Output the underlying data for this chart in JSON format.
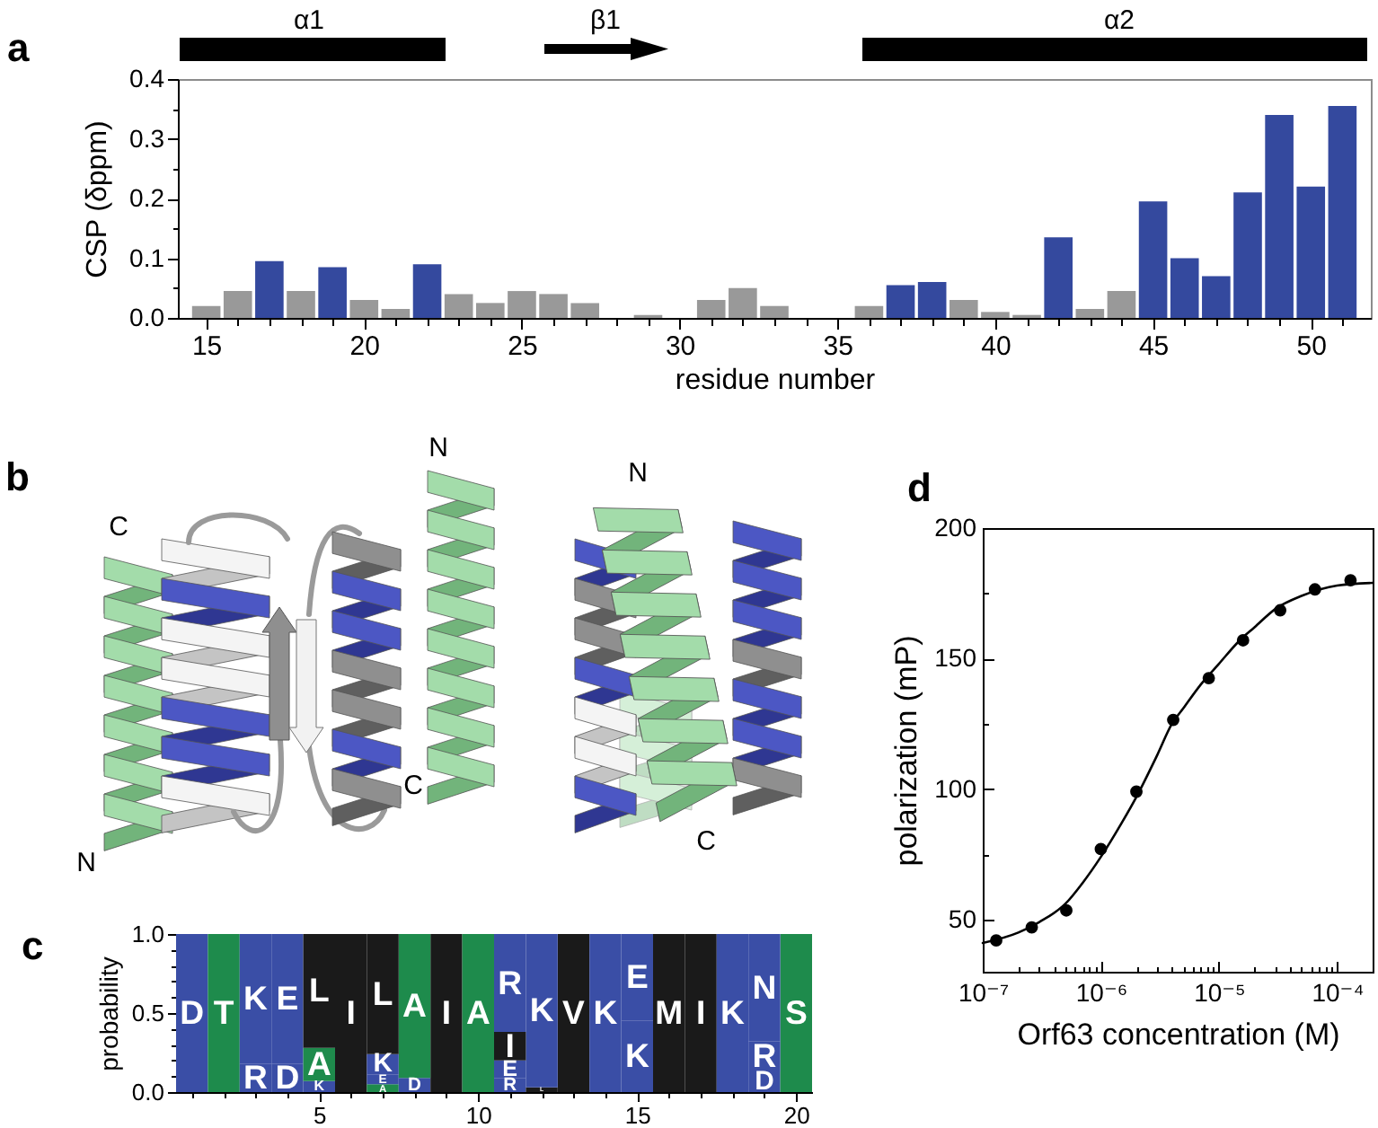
{
  "chart_data": [
    {
      "type": "bar",
      "title": "a",
      "xlabel": "residue number",
      "ylabel": "CSP (δppm)",
      "annotations": [
        "α1",
        "β1",
        "α2"
      ],
      "x": [
        15,
        16,
        17,
        18,
        19,
        20,
        21,
        22,
        23,
        24,
        25,
        26,
        27,
        29,
        31,
        32,
        33,
        36,
        37,
        38,
        39,
        40,
        41,
        42,
        43,
        44,
        45,
        46,
        47,
        48,
        49,
        50,
        51
      ],
      "values": [
        0.02,
        0.045,
        0.095,
        0.045,
        0.085,
        0.03,
        0.015,
        0.09,
        0.04,
        0.025,
        0.045,
        0.04,
        0.025,
        0.005,
        0.03,
        0.05,
        0.02,
        0.02,
        0.055,
        0.06,
        0.03,
        0.01,
        0.005,
        0.135,
        0.015,
        0.045,
        0.195,
        0.1,
        0.07,
        0.21,
        0.34,
        0.22,
        0.355
      ],
      "colors": [
        "#999999",
        "#999999",
        "#34499e",
        "#999999",
        "#34499e",
        "#999999",
        "#999999",
        "#34499e",
        "#999999",
        "#999999",
        "#999999",
        "#999999",
        "#999999",
        "#999999",
        "#999999",
        "#999999",
        "#999999",
        "#999999",
        "#34499e",
        "#34499e",
        "#999999",
        "#999999",
        "#999999",
        "#34499e",
        "#999999",
        "#999999",
        "#34499e",
        "#34499e",
        "#34499e",
        "#34499e",
        "#34499e",
        "#34499e",
        "#34499e"
      ],
      "xlim": [
        14.1,
        51.9
      ],
      "ylim": [
        0,
        0.4
      ],
      "xticks": [
        15,
        {
          "value": 16,
          "label": null
        },
        {
          "value": 17,
          "label": null
        },
        {
          "value": 18,
          "label": null
        },
        {
          "value": 19,
          "label": null
        },
        20,
        {
          "value": 21,
          "label": null
        },
        {
          "value": 22,
          "label": null
        },
        {
          "value": 23,
          "label": null
        },
        {
          "value": 24,
          "label": null
        },
        25,
        {
          "value": 26,
          "label": null
        },
        {
          "value": 27,
          "label": null
        },
        {
          "value": 28,
          "label": null
        },
        {
          "value": 29,
          "label": null
        },
        30,
        {
          "value": 31,
          "label": null
        },
        {
          "value": 32,
          "label": null
        },
        {
          "value": 33,
          "label": null
        },
        {
          "value": 34,
          "label": null
        },
        35,
        {
          "value": 36,
          "label": null
        },
        {
          "value": 37,
          "label": null
        },
        {
          "value": 38,
          "label": null
        },
        {
          "value": 39,
          "label": null
        },
        40,
        {
          "value": 41,
          "label": null
        },
        {
          "value": 42,
          "label": null
        },
        {
          "value": 43,
          "label": null
        },
        {
          "value": 44,
          "label": null
        },
        45,
        {
          "value": 46,
          "label": null
        },
        {
          "value": 47,
          "label": null
        },
        {
          "value": 48,
          "label": null
        },
        {
          "value": 49,
          "label": null
        },
        50,
        {
          "value": 51,
          "label": null
        }
      ],
      "yticks": [
        {
          "value": 0,
          "label": "0.0"
        },
        {
          "value": 0.05,
          "label": null
        },
        0.1,
        {
          "value": 0.15,
          "label": null
        },
        0.2,
        {
          "value": 0.25,
          "label": null
        },
        0.3,
        {
          "value": 0.35,
          "label": null
        },
        0.4
      ]
    },
    {
      "type": "other",
      "title": "b",
      "annotations": [
        "C",
        "N",
        "N",
        "C",
        "N",
        "C"
      ]
    },
    {
      "type": "bar",
      "stacked": true,
      "title": "c",
      "ylabel": "probability",
      "x": [
        1,
        2,
        3,
        4,
        5,
        6,
        7,
        8,
        9,
        10,
        11,
        12,
        13,
        14,
        15,
        16,
        17,
        18,
        19,
        20
      ],
      "series": [
        {
          "values": [
            1,
            1,
            0.18,
            0.18,
            0.07,
            1,
            0.05,
            0.09,
            1,
            1,
            0.09,
            0.03,
            1,
            1,
            0.45,
            1,
            1,
            1,
            0.13,
            1
          ],
          "colors": [
            "#3a4ea6",
            "#1e8b4c",
            "#3a4ea6",
            "#3a4ea6",
            "#3a4ea6",
            "#1a1a1a",
            "#1e8b4c",
            "#3a4ea6",
            "#1a1a1a",
            "#1e8b4c",
            "#3a4ea6",
            "#1a1a1a",
            "#1a1a1a",
            "#3a4ea6",
            "#3a4ea6",
            "#1a1a1a",
            "#1a1a1a",
            "#3a4ea6",
            "#3a4ea6",
            "#1e8b4c"
          ],
          "value_labels": [
            "D",
            "T",
            "R",
            "D",
            "K",
            "I",
            "A",
            "D",
            "I",
            "A",
            "R",
            "L",
            "V",
            "K",
            "K",
            "M",
            "I",
            "K",
            "D",
            "S"
          ]
        },
        {
          "values": [
            null,
            null,
            0.82,
            0.82,
            0.21,
            null,
            0.06,
            0.91,
            null,
            null,
            0.11,
            0.97,
            null,
            null,
            0.55,
            null,
            null,
            null,
            0.19,
            null
          ],
          "colors": [
            null,
            null,
            "#3a4ea6",
            "#3a4ea6",
            "#1e8b4c",
            null,
            "#3a4ea6",
            "#1e8b4c",
            null,
            null,
            "#3a4ea6",
            "#3a4ea6",
            null,
            null,
            "#3a4ea6",
            null,
            null,
            null,
            "#3a4ea6",
            null
          ],
          "value_labels": [
            null,
            null,
            "K",
            "E",
            "A",
            null,
            "E",
            "A",
            null,
            null,
            "E",
            "K",
            null,
            null,
            "E",
            null,
            null,
            null,
            "R",
            null
          ]
        },
        {
          "values": [
            null,
            null,
            null,
            null,
            0.72,
            null,
            0.13,
            null,
            null,
            null,
            0.18,
            null,
            null,
            null,
            null,
            null,
            null,
            null,
            0.68,
            null
          ],
          "colors": [
            null,
            null,
            null,
            null,
            "#1a1a1a",
            null,
            "#3a4ea6",
            null,
            null,
            null,
            "#1a1a1a",
            null,
            null,
            null,
            null,
            null,
            null,
            null,
            "#3a4ea6",
            null
          ],
          "value_labels": [
            null,
            null,
            null,
            null,
            "L",
            null,
            "K",
            null,
            null,
            null,
            "I",
            null,
            null,
            null,
            null,
            null,
            null,
            null,
            "N",
            null
          ]
        },
        {
          "values": [
            null,
            null,
            null,
            null,
            null,
            null,
            0.76,
            null,
            null,
            null,
            0.62,
            null,
            null,
            null,
            null,
            null,
            null,
            null,
            null,
            null
          ],
          "colors": [
            null,
            null,
            null,
            null,
            null,
            null,
            "#1a1a1a",
            null,
            null,
            null,
            "#3a4ea6",
            null,
            null,
            null,
            null,
            null,
            null,
            null,
            null,
            null
          ],
          "value_labels": [
            null,
            null,
            null,
            null,
            null,
            null,
            "L",
            null,
            null,
            null,
            "R",
            null,
            null,
            null,
            null,
            null,
            null,
            null,
            null,
            null
          ]
        }
      ],
      "xlim": [
        0.5,
        20.5
      ],
      "ylim": [
        0,
        1
      ],
      "xticks": [
        {
          "value": 1,
          "label": null
        },
        {
          "value": 2,
          "label": null
        },
        {
          "value": 3,
          "label": null
        },
        {
          "value": 4,
          "label": null
        },
        5,
        {
          "value": 6,
          "label": null
        },
        {
          "value": 7,
          "label": null
        },
        {
          "value": 8,
          "label": null
        },
        {
          "value": 9,
          "label": null
        },
        10,
        {
          "value": 11,
          "label": null
        },
        {
          "value": 12,
          "label": null
        },
        {
          "value": 13,
          "label": null
        },
        {
          "value": 14,
          "label": null
        },
        15,
        {
          "value": 16,
          "label": null
        },
        {
          "value": 17,
          "label": null
        },
        {
          "value": 18,
          "label": null
        },
        {
          "value": 19,
          "label": null
        },
        20
      ],
      "yticks": [
        {
          "value": 0,
          "label": "0.0"
        },
        {
          "value": 0.1,
          "label": null
        },
        {
          "value": 0.2,
          "label": null
        },
        {
          "value": 0.3,
          "label": null
        },
        {
          "value": 0.4,
          "label": null
        },
        0.5,
        {
          "value": 0.6,
          "label": null
        },
        {
          "value": 0.7,
          "label": null
        },
        {
          "value": 0.8,
          "label": null
        },
        {
          "value": 0.9,
          "label": null
        },
        {
          "value": 1,
          "label": "1.0"
        }
      ]
    },
    {
      "type": "scatter",
      "title": "d",
      "xlabel": "Orf63 concentration (M)",
      "ylabel": "polarization (mP)",
      "log": "x",
      "x": [
        1.3e-07,
        2.6e-07,
        5.1e-07,
        1e-06,
        2e-06,
        4.1e-06,
        8.2e-06,
        1.6e-05,
        3.3e-05,
        6.5e-05,
        0.00013
      ],
      "series": [
        {
          "values": [
            42,
            47,
            53.5,
            77,
            99,
            126.5,
            142.5,
            157,
            168.5,
            176.5,
            180
          ],
          "color": "#000000",
          "marker": "circle"
        },
        {
          "type": "line",
          "x": [
            1e-07,
            2e-07,
            3e-07,
            5e-07,
            7e-07,
            1e-06,
            1.5e-06,
            2e-06,
            3e-06,
            4e-06,
            5e-06,
            7e-06,
            1e-05,
            1.5e-05,
            2e-05,
            3e-05,
            5e-05,
            0.0001,
            0.0002
          ],
          "values": [
            41,
            45,
            49,
            56,
            64,
            74,
            87,
            97,
            113,
            125,
            131,
            140,
            148,
            157,
            162,
            169,
            174,
            178,
            179
          ],
          "color": "#000000"
        }
      ],
      "xlim": [
        1e-07,
        0.0002
      ],
      "ylim": [
        30,
        200
      ],
      "xticks": [
        {
          "value": 1e-07,
          "label": "10⁻⁷"
        },
        {
          "value": 2e-07,
          "label": null
        },
        {
          "value": 3e-07,
          "label": null
        },
        {
          "value": 4e-07,
          "label": null
        },
        {
          "value": 5e-07,
          "label": null
        },
        {
          "value": 6e-07,
          "label": null
        },
        {
          "value": 7e-07,
          "label": null
        },
        {
          "value": 8e-07,
          "label": null
        },
        {
          "value": 9e-07,
          "label": null
        },
        {
          "value": 1e-06,
          "label": "10⁻⁶"
        },
        {
          "value": 2e-06,
          "label": null
        },
        {
          "value": 3e-06,
          "label": null
        },
        {
          "value": 4e-06,
          "label": null
        },
        {
          "value": 5e-06,
          "label": null
        },
        {
          "value": 6e-06,
          "label": null
        },
        {
          "value": 7e-06,
          "label": null
        },
        {
          "value": 8e-06,
          "label": null
        },
        {
          "value": 9e-06,
          "label": null
        },
        {
          "value": 1e-05,
          "label": "10⁻⁵"
        },
        {
          "value": 2e-05,
          "label": null
        },
        {
          "value": 3e-05,
          "label": null
        },
        {
          "value": 4e-05,
          "label": null
        },
        {
          "value": 5e-05,
          "label": null
        },
        {
          "value": 6e-05,
          "label": null
        },
        {
          "value": 7e-05,
          "label": null
        },
        {
          "value": 8e-05,
          "label": null
        },
        {
          "value": 9e-05,
          "label": null
        },
        {
          "value": 0.0001,
          "label": "10⁻⁴"
        }
      ],
      "yticks": [
        50,
        {
          "value": 75,
          "label": null
        },
        100,
        {
          "value": 125,
          "label": null
        },
        150,
        {
          "value": 175,
          "label": null
        },
        200
      ]
    }
  ]
}
